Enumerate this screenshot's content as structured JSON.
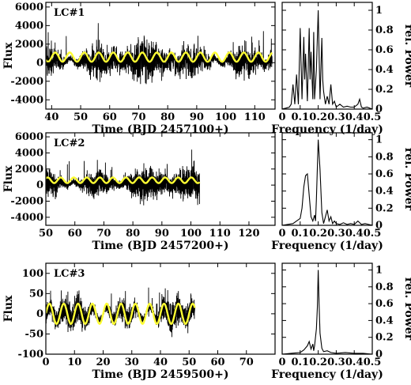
{
  "chart_data": [
    {
      "type": "line",
      "panel": "lc-1",
      "tag": "LC#1",
      "xlabel": "Time (BJD 2457100+)",
      "ylabel": "Flux",
      "xlim": [
        38,
        117
      ],
      "ylim": [
        -5000,
        6500
      ],
      "xticks": [
        40,
        50,
        60,
        70,
        80,
        90,
        100,
        110
      ],
      "yticks": [
        -4000,
        -2000,
        0,
        2000,
        4000,
        6000
      ],
      "data_range": [
        38,
        116
      ],
      "noise_amplitude": 2100,
      "series": [
        {
          "role": "observed",
          "color": "#000000"
        },
        {
          "role": "fit",
          "color": "#ffff33",
          "model": "sinusoid",
          "offset": 600,
          "amplitude": 500,
          "period_days": 5.0
        }
      ]
    },
    {
      "type": "line",
      "panel": "pg-1",
      "xlabel": "Frequency (1/day)",
      "ylabel": "rel. Power",
      "xlim": [
        0,
        0.5
      ],
      "ylim": [
        0,
        1.08
      ],
      "xticks": [
        0,
        0.1,
        0.2,
        0.3,
        0.4,
        0.5
      ],
      "yticks": [
        0,
        0.2,
        0.4,
        0.6,
        0.8,
        1
      ],
      "x": [
        0.0,
        0.02,
        0.04,
        0.05,
        0.06,
        0.07,
        0.08,
        0.09,
        0.1,
        0.11,
        0.12,
        0.125,
        0.13,
        0.14,
        0.15,
        0.155,
        0.16,
        0.17,
        0.175,
        0.18,
        0.19,
        0.2,
        0.21,
        0.22,
        0.225,
        0.23,
        0.24,
        0.25,
        0.26,
        0.27,
        0.28,
        0.29,
        0.3,
        0.32,
        0.34,
        0.36,
        0.38,
        0.4,
        0.42,
        0.43,
        0.44,
        0.45,
        0.47,
        0.5
      ],
      "y": [
        0.0,
        0.01,
        0.02,
        0.05,
        0.25,
        0.05,
        0.35,
        0.05,
        0.82,
        0.1,
        0.73,
        0.3,
        0.56,
        0.08,
        0.82,
        0.3,
        0.58,
        0.1,
        0.78,
        0.1,
        0.4,
        1.0,
        0.1,
        0.72,
        0.3,
        0.18,
        0.05,
        0.13,
        0.05,
        0.25,
        0.05,
        0.08,
        0.02,
        0.05,
        0.02,
        0.03,
        0.02,
        0.02,
        0.05,
        0.1,
        0.02,
        0.01,
        0.02,
        0.0
      ]
    },
    {
      "type": "line",
      "panel": "lc-2",
      "tag": "LC#2",
      "xlabel": "Time (BJD 2457200+)",
      "ylabel": "Flux",
      "xlim": [
        50,
        129
      ],
      "ylim": [
        -5000,
        6500
      ],
      "xticks": [
        50,
        60,
        70,
        80,
        90,
        100,
        110,
        120
      ],
      "yticks": [
        -4000,
        -2000,
        0,
        2000,
        4000,
        6000
      ],
      "data_range": [
        50,
        103
      ],
      "noise_amplitude": 1800,
      "series": [
        {
          "role": "observed",
          "color": "#000000"
        },
        {
          "role": "fit",
          "color": "#ffff33",
          "model": "sinusoid",
          "offset": 600,
          "amplitude": 350,
          "period_days": 4.5
        }
      ]
    },
    {
      "type": "line",
      "panel": "pg-2",
      "xlabel": "Frequency (1/day)",
      "ylabel": "rel. Power",
      "xlim": [
        0,
        0.5
      ],
      "ylim": [
        0,
        1.08
      ],
      "xticks": [
        0,
        0.1,
        0.2,
        0.3,
        0.4,
        0.5
      ],
      "yticks": [
        0,
        0.2,
        0.4,
        0.6,
        0.8,
        1
      ],
      "x": [
        0.0,
        0.03,
        0.06,
        0.08,
        0.1,
        0.11,
        0.12,
        0.13,
        0.14,
        0.15,
        0.16,
        0.17,
        0.18,
        0.185,
        0.19,
        0.2,
        0.21,
        0.22,
        0.23,
        0.24,
        0.25,
        0.26,
        0.27,
        0.28,
        0.29,
        0.3,
        0.32,
        0.34,
        0.36,
        0.38,
        0.4,
        0.42,
        0.44,
        0.46,
        0.48,
        0.5
      ],
      "y": [
        0.0,
        0.01,
        0.02,
        0.05,
        0.08,
        0.2,
        0.45,
        0.58,
        0.6,
        0.35,
        0.1,
        0.05,
        0.12,
        0.05,
        0.3,
        1.0,
        0.65,
        0.15,
        0.02,
        0.1,
        0.18,
        0.05,
        0.1,
        0.02,
        0.05,
        0.02,
        0.01,
        0.03,
        0.01,
        0.02,
        0.01,
        0.05,
        0.01,
        0.02,
        0.01,
        0.0
      ]
    },
    {
      "type": "line",
      "panel": "lc-3",
      "tag": "LC#3",
      "xlabel": "Time (BJD 2459500+)",
      "ylabel": "Flux",
      "xlim": [
        0,
        80
      ],
      "ylim": [
        -100,
        125
      ],
      "xticks": [
        0,
        10,
        20,
        30,
        40,
        50,
        60,
        70
      ],
      "yticks": [
        -100,
        -50,
        0,
        50,
        100
      ],
      "data_range": [
        0,
        52
      ],
      "noise_amplitude": 35,
      "series": [
        {
          "role": "observed",
          "color": "#000000"
        },
        {
          "role": "fit",
          "color": "#ffff33",
          "model": "sinusoid",
          "offset": 0,
          "amplitude": 25,
          "period_days": 5.0
        }
      ]
    },
    {
      "type": "line",
      "panel": "pg-3",
      "xlabel": "Frequency (1/day)",
      "ylabel": "rel. Power",
      "xlim": [
        0,
        0.5
      ],
      "ylim": [
        0,
        1.08
      ],
      "xticks": [
        0,
        0.1,
        0.2,
        0.3,
        0.4,
        0.5
      ],
      "yticks": [
        0,
        0.2,
        0.4,
        0.6,
        0.8,
        1
      ],
      "x": [
        0.0,
        0.05,
        0.1,
        0.12,
        0.14,
        0.15,
        0.16,
        0.17,
        0.175,
        0.18,
        0.19,
        0.195,
        0.2,
        0.205,
        0.21,
        0.22,
        0.23,
        0.25,
        0.27,
        0.3,
        0.35,
        0.4,
        0.45,
        0.5
      ],
      "y": [
        0.0,
        0.01,
        0.02,
        0.05,
        0.1,
        0.15,
        0.06,
        0.12,
        0.04,
        0.1,
        0.3,
        0.55,
        1.0,
        0.6,
        0.25,
        0.07,
        0.03,
        0.04,
        0.02,
        0.01,
        0.02,
        0.01,
        0.01,
        0.0
      ]
    }
  ]
}
